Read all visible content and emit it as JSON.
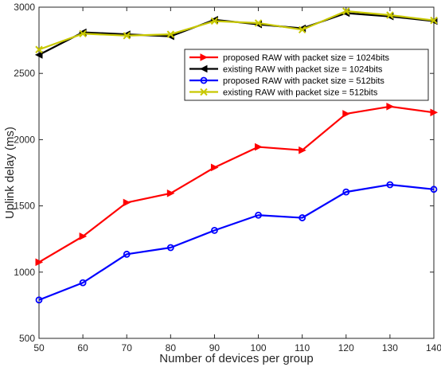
{
  "chart_data": {
    "type": "line",
    "xlabel": "Number of devices per group",
    "ylabel": "Uplink delay (ms)",
    "xlim": [
      50,
      140
    ],
    "ylim": [
      500,
      3000
    ],
    "x_ticks": [
      50,
      60,
      70,
      80,
      90,
      100,
      110,
      120,
      130,
      140
    ],
    "y_ticks": [
      500,
      1000,
      1500,
      2000,
      2500,
      3000
    ],
    "grid": false,
    "legend_position": "top-right",
    "x": [
      50,
      60,
      70,
      80,
      90,
      100,
      110,
      120,
      130,
      140
    ],
    "series": [
      {
        "name": "proposed RAW with packet size = 1024bits",
        "color": "#ff0000",
        "marker": "triangle-right",
        "values": [
          1075,
          1270,
          1525,
          1595,
          1790,
          1945,
          1920,
          2195,
          2250,
          2205
        ]
      },
      {
        "name": "existing RAW with packet size = 1024bits",
        "color": "#000000",
        "marker": "triangle-left",
        "values": [
          2640,
          2810,
          2795,
          2780,
          2905,
          2870,
          2840,
          2955,
          2930,
          2895
        ]
      },
      {
        "name": "proposed RAW with packet size = 512bits",
        "color": "#0000ff",
        "marker": "circle",
        "values": [
          790,
          920,
          1135,
          1185,
          1315,
          1430,
          1410,
          1605,
          1660,
          1625
        ]
      },
      {
        "name": "existing RAW with packet size = 512bits",
        "color": "#c8c800",
        "marker": "x",
        "values": [
          2680,
          2800,
          2785,
          2795,
          2895,
          2880,
          2830,
          2970,
          2940,
          2900
        ]
      }
    ]
  }
}
